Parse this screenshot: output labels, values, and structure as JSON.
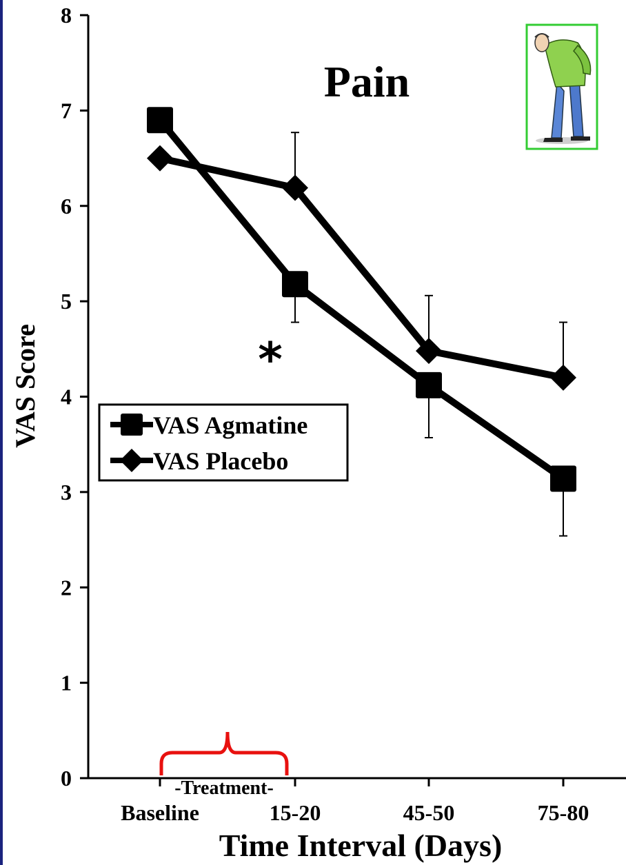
{
  "chart_data": {
    "type": "line",
    "title": "Pain",
    "xlabel": "Time Interval (Days)",
    "ylabel": "VAS Score",
    "categories": [
      "Baseline",
      "15-20",
      "45-50",
      "75-80"
    ],
    "ylim": [
      0,
      8
    ],
    "yticks": [
      "0",
      "1",
      "2",
      "3",
      "4",
      "5",
      "6",
      "7",
      "8"
    ],
    "grid": false,
    "legend_position": "middle-left",
    "series": [
      {
        "name": "VAS Agmatine",
        "marker": "square",
        "values": [
          6.9,
          5.18,
          4.12,
          3.14
        ],
        "error": [
          0,
          0.4,
          0.55,
          0.6
        ]
      },
      {
        "name": "VAS Placebo",
        "marker": "diamond",
        "values": [
          6.5,
          6.19,
          4.48,
          4.2
        ],
        "error": [
          0,
          0.58,
          0.58,
          0.58
        ]
      }
    ],
    "annotations": {
      "significance": "*",
      "treatment_label": "-Treatment-"
    },
    "colors": {
      "line": "#000000",
      "bracket": "#e8110f",
      "frame": "#1a237e",
      "inset_border": "#33cc33"
    },
    "inset_icon": "person-back-pain-icon"
  }
}
